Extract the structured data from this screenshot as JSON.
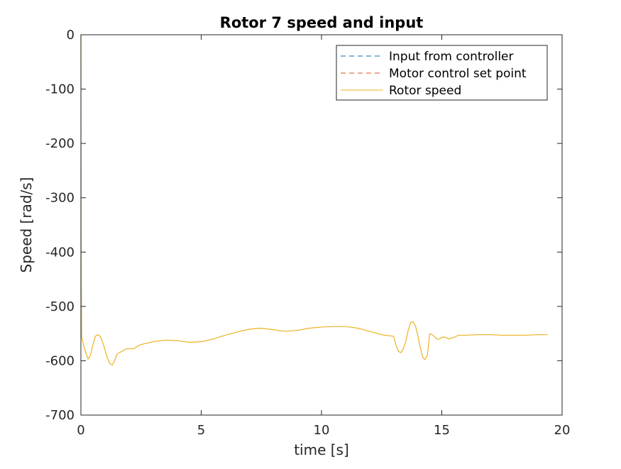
{
  "chart_data": {
    "type": "line",
    "title": "Rotor 7 speed and input",
    "xlabel": "time [s]",
    "ylabel": "Speed [rad/s]",
    "xlim": [
      0,
      20
    ],
    "ylim": [
      -700,
      0
    ],
    "xticks": [
      0,
      5,
      10,
      15,
      20
    ],
    "yticks": [
      0,
      -100,
      -200,
      -300,
      -400,
      -500,
      -600,
      -700
    ],
    "grid": false,
    "legend_position": "top-right",
    "series": [
      {
        "name": "Input from controller",
        "style": "dashed",
        "color": "#0072BD",
        "x": [],
        "y": []
      },
      {
        "name": "Motor control set point",
        "style": "dashed",
        "color": "#D95319",
        "x": [],
        "y": []
      },
      {
        "name": "Rotor speed",
        "style": "solid",
        "color": "#EDB120",
        "x": [
          0,
          0.01,
          0.03,
          0.1,
          0.2,
          0.3,
          0.4,
          0.5,
          0.6,
          0.7,
          0.8,
          0.9,
          1.0,
          1.1,
          1.2,
          1.3,
          1.4,
          1.5,
          1.6,
          1.7,
          1.8,
          1.9,
          2.0,
          2.2,
          2.4,
          2.6,
          2.8,
          3.0,
          3.5,
          4.0,
          4.5,
          5.0,
          5.5,
          6.0,
          6.5,
          7.0,
          7.5,
          8.0,
          8.5,
          9.0,
          9.5,
          10.0,
          10.5,
          11.0,
          11.5,
          12.0,
          12.5,
          13.0,
          13.1,
          13.2,
          13.3,
          13.4,
          13.5,
          13.6,
          13.7,
          13.8,
          13.9,
          14.0,
          14.1,
          14.2,
          14.3,
          14.4,
          14.5,
          14.6,
          14.7,
          14.8,
          14.9,
          15.0,
          15.1,
          15.2,
          15.3,
          15.5,
          15.7,
          16.0,
          16.5,
          17.0,
          17.5,
          18.0,
          18.5,
          19.0,
          19.4
        ],
        "y": [
          0,
          -400,
          -555,
          -570,
          -585,
          -597,
          -590,
          -570,
          -555,
          -552,
          -555,
          -565,
          -580,
          -595,
          -605,
          -608,
          -600,
          -588,
          -585,
          -583,
          -580,
          -578,
          -578,
          -578,
          -572,
          -569,
          -567,
          -565,
          -562,
          -563,
          -566,
          -565,
          -560,
          -553,
          -547,
          -542,
          -540,
          -543,
          -546,
          -544,
          -540,
          -538,
          -537,
          -537,
          -540,
          -546,
          -552,
          -555,
          -572,
          -583,
          -585,
          -578,
          -565,
          -545,
          -530,
          -528,
          -535,
          -553,
          -575,
          -593,
          -598,
          -590,
          -550,
          -552,
          -556,
          -560,
          -560,
          -557,
          -556,
          -558,
          -560,
          -557,
          -553,
          -553,
          -552,
          -552,
          -553,
          -553,
          -553,
          -552,
          -552
        ]
      }
    ]
  }
}
